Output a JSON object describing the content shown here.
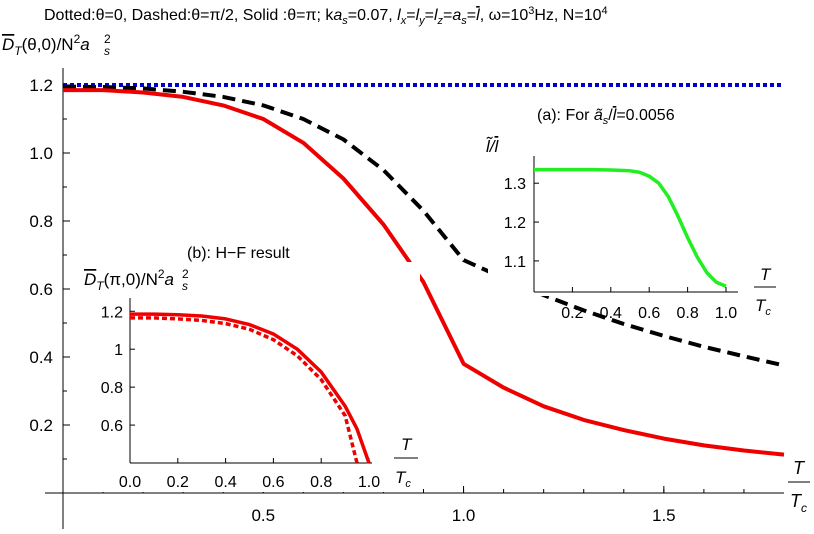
{
  "chart_data": {
    "type": "line",
    "title": "Dotted:θ=0, Dashed:θ=π/2, Solid :θ=π; ka_s=0.07, l_x=l_y=l_z=a_s=l̄, ω=10^3Hz, N=10^4",
    "title_parts": [
      "Dotted:θ=0, Dashed:θ=π/2, Solid :θ=π; k",
      "a",
      "s",
      "=0.07, ",
      "l",
      "x",
      "=",
      "l",
      "y",
      "=",
      "l",
      "z",
      "=",
      "a",
      "s",
      "=",
      "l",
      ", ω=10",
      "3",
      "Hz, N=10",
      "4"
    ],
    "ylabel_parts": [
      "D",
      "T",
      "(θ,0)/N",
      "2",
      "a",
      "s",
      "2"
    ],
    "xlabel_parts": [
      "T",
      "T",
      "c"
    ],
    "xlim": [
      0,
      1.8
    ],
    "ylim": [
      0,
      1.25
    ],
    "xticks": [
      "0.5",
      "1.0",
      "1.5"
    ],
    "yticks": [
      "0.2",
      "0.4",
      "0.6",
      "0.8",
      "1.0",
      "1.2"
    ],
    "series": [
      {
        "name": "Dotted: θ=0",
        "style": "dotted",
        "color": "#0000cc",
        "x": [
          0,
          0.5,
          1.0,
          1.5,
          1.8
        ],
        "y": [
          1.2,
          1.2,
          1.2,
          1.2,
          1.2
        ]
      },
      {
        "name": "Dashed: θ=π/2",
        "style": "dashed",
        "color": "#000000",
        "x": [
          0,
          0.1,
          0.2,
          0.3,
          0.4,
          0.5,
          0.6,
          0.7,
          0.8,
          0.9,
          1.0,
          1.1,
          1.2,
          1.3,
          1.4,
          1.5,
          1.6,
          1.7,
          1.8
        ],
        "y": [
          1.195,
          1.194,
          1.19,
          1.18,
          1.165,
          1.14,
          1.1,
          1.04,
          0.95,
          0.83,
          0.685,
          0.632,
          0.582,
          0.537,
          0.497,
          0.462,
          0.43,
          0.402,
          0.375
        ]
      },
      {
        "name": "Solid: θ=π",
        "style": "solid",
        "color": "#ee0000",
        "x": [
          0,
          0.1,
          0.2,
          0.3,
          0.4,
          0.5,
          0.6,
          0.7,
          0.8,
          0.9,
          1.0,
          1.1,
          1.2,
          1.3,
          1.4,
          1.5,
          1.6,
          1.7,
          1.8
        ],
        "y": [
          1.185,
          1.185,
          1.178,
          1.165,
          1.14,
          1.1,
          1.03,
          0.925,
          0.79,
          0.62,
          0.38,
          0.31,
          0.255,
          0.215,
          0.185,
          0.16,
          0.14,
          0.125,
          0.113
        ]
      }
    ],
    "insets": [
      {
        "id": "a",
        "label_parts": [
          "(a): For ",
          "ã",
          "s",
          "/",
          "l",
          "=0.0056"
        ],
        "ylabel_parts": [
          "l̃",
          "/",
          "l"
        ],
        "xlabel_parts": [
          "T",
          "T",
          "c"
        ],
        "xlim": [
          0,
          1.0
        ],
        "ylim": [
          1.02,
          1.37
        ],
        "xticks": [
          "0.2",
          "0.4",
          "0.6",
          "0.8",
          "1.0"
        ],
        "yticks": [
          "1.1",
          "1.2",
          "1.3"
        ],
        "series": [
          {
            "name": "l̃/l",
            "style": "solid",
            "color": "#22ee22",
            "x": [
              0,
              0.1,
              0.2,
              0.3,
              0.4,
              0.5,
              0.55,
              0.6,
              0.65,
              0.7,
              0.75,
              0.8,
              0.85,
              0.9,
              0.95,
              1.0
            ],
            "y": [
              1.335,
              1.335,
              1.335,
              1.335,
              1.334,
              1.332,
              1.328,
              1.318,
              1.3,
              1.265,
              1.215,
              1.16,
              1.11,
              1.07,
              1.045,
              1.035
            ]
          }
        ]
      },
      {
        "id": "b",
        "label_parts": [
          "(b): H−F result"
        ],
        "ylabel_parts": [
          "D",
          "T",
          "(π,0)/N",
          "2",
          "a",
          "s",
          "2"
        ],
        "xlabel_parts": [
          "T",
          "T",
          "c"
        ],
        "xlim": [
          0,
          1.0
        ],
        "ylim": [
          0.4,
          1.27
        ],
        "xticks": [
          "0.0",
          "0.2",
          "0.4",
          "0.6",
          "0.8",
          "1.0"
        ],
        "yticks": [
          "0.6",
          "0.8",
          "1",
          "1.2"
        ],
        "series": [
          {
            "name": "solid",
            "style": "solid",
            "color": "#ee0000",
            "x": [
              0,
              0.1,
              0.2,
              0.3,
              0.4,
              0.5,
              0.6,
              0.7,
              0.8,
              0.9,
              0.95,
              1.0
            ],
            "y": [
              1.185,
              1.185,
              1.182,
              1.175,
              1.16,
              1.13,
              1.08,
              1.0,
              0.88,
              0.7,
              0.58,
              0.4
            ]
          },
          {
            "name": "dotted",
            "style": "dotted",
            "color": "#ee0000",
            "x": [
              0,
              0.1,
              0.2,
              0.3,
              0.4,
              0.5,
              0.6,
              0.7,
              0.8,
              0.9,
              0.95
            ],
            "y": [
              1.165,
              1.165,
              1.16,
              1.152,
              1.135,
              1.105,
              1.05,
              0.965,
              0.84,
              0.65,
              0.4
            ]
          }
        ]
      }
    ]
  }
}
